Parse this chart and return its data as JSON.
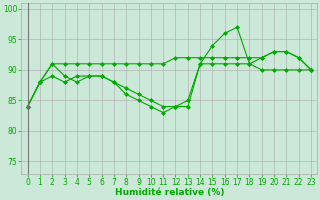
{
  "xlabel": "Humidité relative (%)",
  "background_color": "#cce8d8",
  "grid_color": "#aaaaaa",
  "line_color": "#00aa00",
  "xlim": [
    -0.5,
    23.5
  ],
  "ylim": [
    73,
    101
  ],
  "yticks": [
    75,
    80,
    85,
    90,
    95,
    100
  ],
  "xticks": [
    0,
    1,
    2,
    3,
    4,
    5,
    6,
    7,
    8,
    9,
    10,
    11,
    12,
    13,
    14,
    15,
    16,
    17,
    18,
    19,
    20,
    21,
    22,
    23
  ],
  "series": [
    [
      84,
      88,
      91,
      89,
      88,
      89,
      89,
      88,
      86,
      85,
      84,
      83,
      84,
      85,
      91,
      94,
      96,
      97,
      91,
      92,
      93,
      93,
      92,
      90
    ],
    [
      84,
      88,
      91,
      91,
      91,
      91,
      91,
      91,
      91,
      91,
      91,
      91,
      92,
      92,
      92,
      92,
      92,
      92,
      92,
      92,
      93,
      93,
      92,
      90
    ],
    [
      84,
      88,
      89,
      88,
      89,
      89,
      89,
      88,
      87,
      86,
      85,
      84,
      84,
      84,
      91,
      91,
      91,
      91,
      91,
      90,
      90,
      90,
      90,
      90
    ]
  ],
  "marker": "D",
  "marker_size": 2,
  "line_width": 0.8,
  "tick_fontsize": 5.5,
  "xlabel_fontsize": 6.5
}
